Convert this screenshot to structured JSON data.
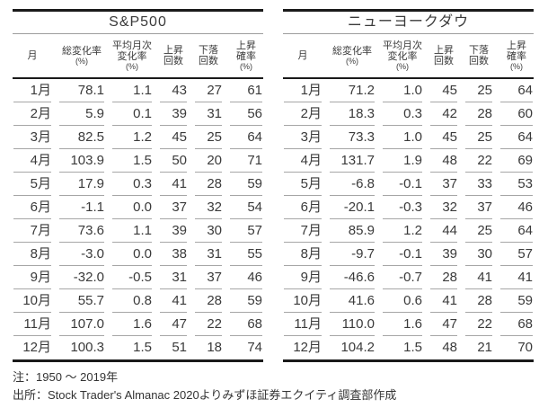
{
  "tables": [
    {
      "title": "S&P500",
      "columns": [
        {
          "label": "月",
          "unit": ""
        },
        {
          "label": "総変化率",
          "unit": "(%)"
        },
        {
          "label": "平均月次\n変化率",
          "unit": "(%)"
        },
        {
          "label": "上昇\n回数",
          "unit": ""
        },
        {
          "label": "下落\n回数",
          "unit": ""
        },
        {
          "label": "上昇\n確率",
          "unit": "(%)"
        }
      ],
      "rows": [
        [
          "1月",
          "78.1",
          "1.1",
          "43",
          "27",
          "61"
        ],
        [
          "2月",
          "5.9",
          "0.1",
          "39",
          "31",
          "56"
        ],
        [
          "3月",
          "82.5",
          "1.2",
          "45",
          "25",
          "64"
        ],
        [
          "4月",
          "103.9",
          "1.5",
          "50",
          "20",
          "71"
        ],
        [
          "5月",
          "17.9",
          "0.3",
          "41",
          "28",
          "59"
        ],
        [
          "6月",
          "-1.1",
          "0.0",
          "37",
          "32",
          "54"
        ],
        [
          "7月",
          "73.6",
          "1.1",
          "39",
          "30",
          "57"
        ],
        [
          "8月",
          "-3.0",
          "0.0",
          "38",
          "31",
          "55"
        ],
        [
          "9月",
          "-32.0",
          "-0.5",
          "31",
          "37",
          "46"
        ],
        [
          "10月",
          "55.7",
          "0.8",
          "41",
          "28",
          "59"
        ],
        [
          "11月",
          "107.0",
          "1.6",
          "47",
          "22",
          "68"
        ],
        [
          "12月",
          "100.3",
          "1.5",
          "51",
          "18",
          "74"
        ]
      ]
    },
    {
      "title": "ニューヨークダウ",
      "columns": [
        {
          "label": "月",
          "unit": ""
        },
        {
          "label": "総変化率",
          "unit": "(%)"
        },
        {
          "label": "平均月次\n変化率",
          "unit": "(%)"
        },
        {
          "label": "上昇\n回数",
          "unit": ""
        },
        {
          "label": "下落\n回数",
          "unit": ""
        },
        {
          "label": "上昇\n確率",
          "unit": "(%)"
        }
      ],
      "rows": [
        [
          "1月",
          "71.2",
          "1.0",
          "45",
          "25",
          "64"
        ],
        [
          "2月",
          "18.3",
          "0.3",
          "42",
          "28",
          "60"
        ],
        [
          "3月",
          "73.3",
          "1.0",
          "45",
          "25",
          "64"
        ],
        [
          "4月",
          "131.7",
          "1.9",
          "48",
          "22",
          "69"
        ],
        [
          "5月",
          "-6.8",
          "-0.1",
          "37",
          "33",
          "53"
        ],
        [
          "6月",
          "-20.1",
          "-0.3",
          "32",
          "37",
          "46"
        ],
        [
          "7月",
          "85.9",
          "1.2",
          "44",
          "25",
          "64"
        ],
        [
          "8月",
          "-9.7",
          "-0.1",
          "39",
          "30",
          "57"
        ],
        [
          "9月",
          "-46.6",
          "-0.7",
          "28",
          "41",
          "41"
        ],
        [
          "10月",
          "41.6",
          "0.6",
          "41",
          "28",
          "59"
        ],
        [
          "11月",
          "110.0",
          "1.6",
          "47",
          "22",
          "68"
        ],
        [
          "12月",
          "104.2",
          "1.5",
          "48",
          "21",
          "70"
        ]
      ]
    }
  ],
  "notes": {
    "line1": "注：1950 ～ 2019年",
    "line2": "出所：Stock Trader's Almanac 2020よりみずほ証券エクイティ調査部作成"
  },
  "colors": {
    "rule_heavy": "#1a1a1a",
    "rule_light": "#a6a6a6",
    "text": "#3a3a3a"
  }
}
